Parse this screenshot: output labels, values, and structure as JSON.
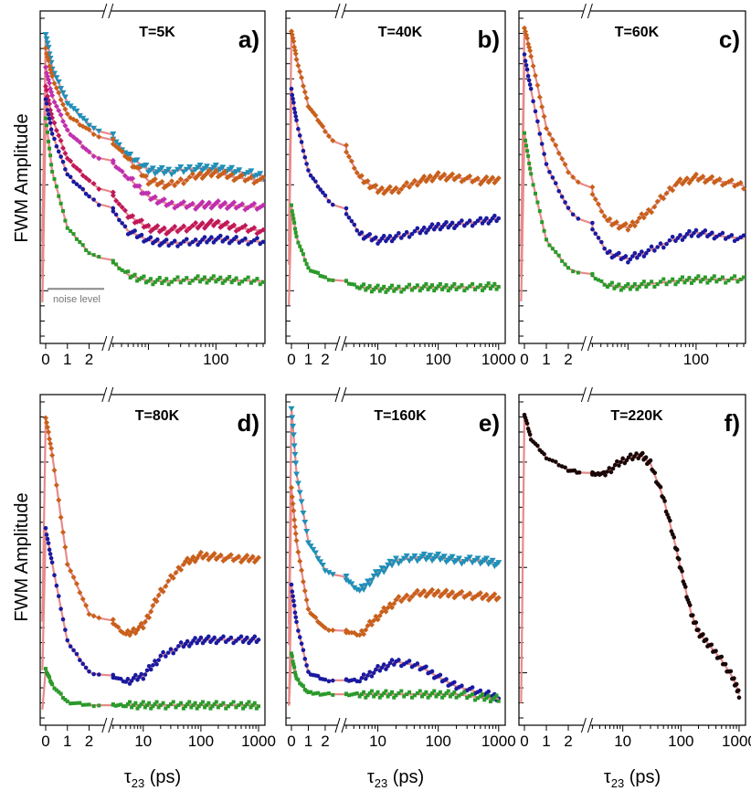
{
  "figure": {
    "ylabel": "FWM Amplitude",
    "xlabel_main": "τ",
    "xlabel_sub": "23",
    "xlabel_unit": " (ps)",
    "noise_label": "noise level"
  },
  "colors": {
    "fit": "#e88a8a",
    "cyan": "#1f8fb8",
    "orange": "#c8601a",
    "magenta": "#c02fb0",
    "crimson": "#c0185a",
    "blue": "#1a1aa0",
    "green": "#2a9a2a",
    "black": "#1a0808"
  },
  "chart_data": [
    {
      "type": "scatter",
      "panel": "a)",
      "title": "T=5K",
      "linear_ticks": [
        "0",
        "1",
        "2"
      ],
      "log_ticks": [
        "100"
      ],
      "xlim_log": [
        3,
        500
      ],
      "series": [
        {
          "color": "cyan",
          "x": [
            0,
            0.3,
            1,
            2,
            5,
            10,
            20,
            50,
            100,
            200,
            500
          ],
          "y": [
            9.6,
            8.5,
            7.4,
            6.7,
            5.7,
            5.25,
            5.2,
            5.3,
            5.3,
            5.2,
            5.05
          ]
        },
        {
          "color": "orange",
          "x": [
            0,
            0.3,
            1,
            2,
            5,
            10,
            20,
            50,
            100,
            200,
            500
          ],
          "y": [
            9.1,
            8.2,
            7.0,
            6.5,
            5.6,
            4.9,
            4.75,
            5.05,
            5.15,
            5.0,
            4.9
          ]
        },
        {
          "color": "magenta",
          "x": [
            0,
            0.3,
            1,
            2,
            5,
            10,
            20,
            50,
            100,
            200,
            500
          ],
          "y": [
            8.5,
            7.6,
            6.5,
            5.8,
            5.0,
            4.4,
            4.15,
            4.1,
            4.15,
            4.1,
            4.05
          ]
        },
        {
          "color": "crimson",
          "x": [
            0,
            0.3,
            1,
            2,
            5,
            10,
            20,
            50,
            100,
            200,
            500
          ],
          "y": [
            7.9,
            6.9,
            5.6,
            4.9,
            3.8,
            3.4,
            3.3,
            3.45,
            3.55,
            3.4,
            3.3
          ]
        },
        {
          "color": "blue",
          "x": [
            0,
            0.3,
            1,
            2,
            5,
            10,
            20,
            50,
            100,
            200,
            500
          ],
          "y": [
            7.5,
            6.4,
            5.1,
            4.4,
            3.3,
            3.0,
            2.9,
            2.95,
            3.05,
            3.0,
            2.95
          ]
        },
        {
          "color": "green",
          "x": [
            0,
            0.3,
            1,
            2,
            5,
            10,
            20,
            50,
            100,
            200,
            500
          ],
          "y": [
            6.9,
            5.2,
            3.4,
            2.6,
            1.9,
            1.7,
            1.7,
            1.75,
            1.75,
            1.72,
            1.7
          ]
        }
      ]
    },
    {
      "type": "scatter",
      "panel": "b)",
      "title": "T=40K",
      "linear_ticks": [
        "0",
        "1",
        "2"
      ],
      "log_ticks": [
        "10",
        "100",
        "1000"
      ],
      "xlim_log": [
        3,
        1200
      ],
      "series": [
        {
          "color": "orange",
          "x": [
            0,
            0.3,
            1,
            2,
            5,
            10,
            20,
            50,
            100,
            200,
            500,
            1000
          ],
          "y": [
            9.7,
            8.8,
            7.3,
            6.5,
            5.0,
            4.6,
            4.6,
            4.9,
            5.05,
            5.0,
            4.9,
            4.95
          ]
        },
        {
          "color": "blue",
          "x": [
            0,
            0.3,
            1,
            2,
            5,
            10,
            20,
            50,
            100,
            200,
            500,
            1000
          ],
          "y": [
            7.8,
            6.8,
            5.2,
            4.4,
            3.2,
            3.0,
            3.1,
            3.3,
            3.45,
            3.5,
            3.6,
            3.7
          ]
        },
        {
          "color": "green",
          "x": [
            0,
            0.3,
            1,
            2,
            5,
            10,
            20,
            50,
            100,
            200,
            500,
            1000
          ],
          "y": [
            4.1,
            3.1,
            2.1,
            1.8,
            1.5,
            1.45,
            1.45,
            1.5,
            1.5,
            1.5,
            1.5,
            1.55
          ]
        }
      ]
    },
    {
      "type": "scatter",
      "panel": "c)",
      "title": "T=60K",
      "linear_ticks": [
        "0",
        "1",
        "2"
      ],
      "log_ticks": [
        "100"
      ],
      "xlim_log": [
        3,
        500
      ],
      "series": [
        {
          "color": "orange",
          "x": [
            0,
            0.3,
            1,
            2,
            5,
            10,
            20,
            50,
            100,
            200,
            500
          ],
          "y": [
            9.8,
            8.9,
            6.6,
            5.2,
            3.6,
            3.4,
            3.9,
            4.8,
            5.0,
            4.9,
            4.75
          ]
        },
        {
          "color": "blue",
          "x": [
            0,
            0.3,
            1,
            2,
            5,
            10,
            20,
            50,
            100,
            200,
            500
          ],
          "y": [
            8.9,
            7.8,
            5.4,
            4.0,
            2.6,
            2.4,
            2.65,
            3.05,
            3.25,
            3.15,
            3.05
          ]
        },
        {
          "color": "green",
          "x": [
            0,
            0.3,
            1,
            2,
            5,
            10,
            20,
            50,
            100,
            200,
            500
          ],
          "y": [
            6.4,
            5.1,
            3.0,
            2.1,
            1.55,
            1.5,
            1.6,
            1.7,
            1.75,
            1.75,
            1.75
          ]
        }
      ]
    },
    {
      "type": "scatter",
      "panel": "d)",
      "title": "T=80K",
      "linear_ticks": [
        "0",
        "1",
        "2"
      ],
      "log_ticks": [
        "10",
        "100",
        "1000"
      ],
      "xlim_log": [
        3,
        1200
      ],
      "series": [
        {
          "color": "orange",
          "x": [
            0,
            0.3,
            1,
            2,
            5,
            10,
            20,
            50,
            100,
            200,
            500,
            1000
          ],
          "y": [
            9.6,
            8.4,
            4.9,
            3.3,
            2.6,
            2.9,
            4.0,
            4.9,
            5.15,
            5.1,
            5.05,
            5.05
          ]
        },
        {
          "color": "blue",
          "x": [
            0,
            0.3,
            1,
            2,
            5,
            10,
            20,
            50,
            100,
            200,
            500,
            1000
          ],
          "y": [
            6.0,
            4.9,
            2.4,
            1.4,
            1.1,
            1.3,
            1.9,
            2.3,
            2.45,
            2.45,
            2.45,
            2.45
          ]
        },
        {
          "color": "green",
          "x": [
            0,
            0.3,
            1,
            2,
            5,
            10,
            20,
            50,
            100,
            200,
            500,
            1000
          ],
          "y": [
            1.5,
            1.0,
            0.45,
            0.35,
            0.35,
            0.35,
            0.35,
            0.35,
            0.35,
            0.35,
            0.35,
            0.35
          ]
        }
      ]
    },
    {
      "type": "scatter",
      "panel": "e)",
      "title": "T=160K",
      "linear_ticks": [
        "0",
        "1",
        "2"
      ],
      "log_ticks": [
        "10",
        "100",
        "1000"
      ],
      "xlim_log": [
        3,
        1200
      ],
      "series": [
        {
          "color": "cyan",
          "x": [
            0,
            0.3,
            1,
            2,
            5,
            10,
            20,
            50,
            100,
            200,
            500,
            1000
          ],
          "y": [
            9.9,
            7.8,
            5.6,
            4.7,
            4.0,
            4.6,
            5.0,
            5.1,
            5.1,
            5.0,
            5.0,
            4.9
          ]
        },
        {
          "color": "orange",
          "x": [
            0,
            0.3,
            1,
            2,
            5,
            10,
            20,
            50,
            100,
            200,
            500,
            1000
          ],
          "y": [
            7.3,
            5.6,
            3.4,
            2.8,
            2.6,
            3.2,
            3.7,
            3.95,
            3.95,
            3.9,
            3.85,
            3.8
          ]
        },
        {
          "color": "blue",
          "x": [
            0,
            0.3,
            1,
            2,
            5,
            10,
            20,
            50,
            100,
            200,
            500,
            1000
          ],
          "y": [
            4.2,
            3.0,
            1.4,
            1.15,
            1.15,
            1.5,
            1.75,
            1.6,
            1.25,
            0.95,
            0.75,
            0.6
          ]
        },
        {
          "color": "green",
          "x": [
            0,
            0.3,
            1,
            2,
            5,
            10,
            20,
            50,
            100,
            200,
            500,
            1000
          ],
          "y": [
            2.0,
            1.2,
            0.75,
            0.7,
            0.7,
            0.7,
            0.7,
            0.7,
            0.7,
            0.7,
            0.6,
            0.55
          ]
        }
      ]
    },
    {
      "type": "scatter",
      "panel": "f)",
      "title": "T=220K",
      "linear_ticks": [
        "0",
        "1",
        "2"
      ],
      "log_ticks": [
        "10",
        "100",
        "1000"
      ],
      "xlim_log": [
        3,
        1200
      ],
      "series": [
        {
          "color": "black",
          "x": [
            0,
            0.3,
            1,
            2,
            3,
            5,
            10,
            20,
            30,
            50,
            80,
            100,
            150,
            200,
            300,
            500,
            800,
            1000
          ],
          "y": [
            9.7,
            8.9,
            8.3,
            7.9,
            7.75,
            7.8,
            8.2,
            8.4,
            8.1,
            7.0,
            5.5,
            4.7,
            3.3,
            2.7,
            2.3,
            1.8,
            1.2,
            0.7
          ]
        }
      ]
    }
  ]
}
